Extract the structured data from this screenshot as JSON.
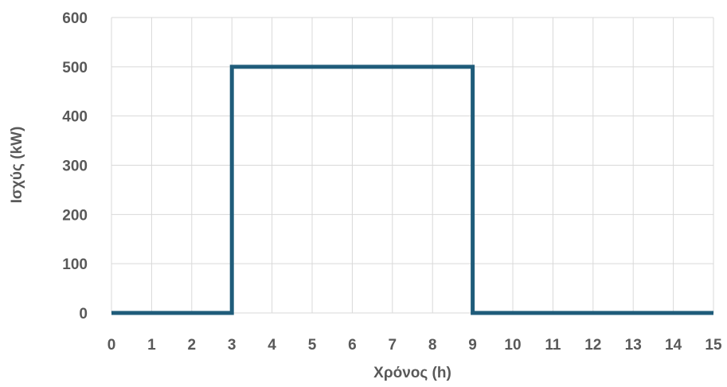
{
  "chart_data": {
    "type": "line",
    "title": "",
    "xlabel": "Χρόνος (h)",
    "ylabel": "Ισχύς (kW)",
    "xlim": [
      0,
      15
    ],
    "ylim": [
      0,
      600
    ],
    "x_ticks": [
      0,
      1,
      2,
      3,
      4,
      5,
      6,
      7,
      8,
      9,
      10,
      11,
      12,
      13,
      14,
      15
    ],
    "y_ticks": [
      0,
      100,
      200,
      300,
      400,
      500,
      600
    ],
    "grid": true,
    "legend": "none",
    "series": [
      {
        "color": "#1f5c7a",
        "x": [
          0,
          3,
          3,
          9,
          9,
          15
        ],
        "y": [
          0,
          0,
          500,
          500,
          0,
          0
        ]
      }
    ]
  }
}
